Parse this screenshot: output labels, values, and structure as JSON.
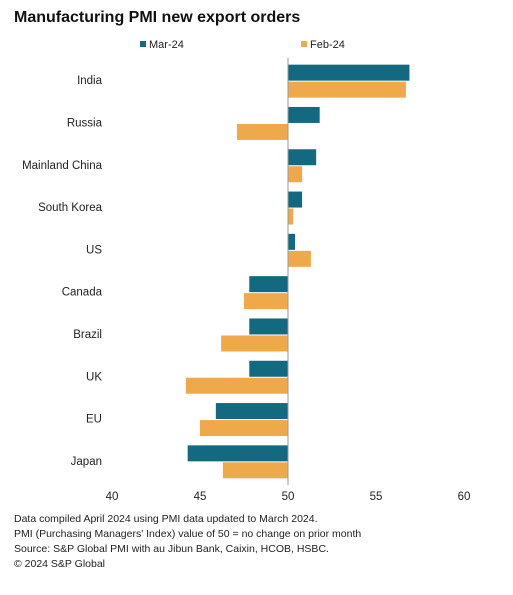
{
  "title": "Manufacturing PMI new export orders",
  "colors": {
    "mar": "#136a80",
    "feb": "#f0a94a",
    "baseline": "#999999"
  },
  "chart_data": {
    "type": "bar",
    "orientation": "horizontal",
    "title": "Manufacturing PMI new export orders",
    "categories": [
      "India",
      "Russia",
      "Mainland China",
      "South Korea",
      "US",
      "Canada",
      "Brazil",
      "UK",
      "EU",
      "Japan"
    ],
    "series": [
      {
        "name": "Mar-24",
        "values": [
          56.9,
          51.8,
          51.6,
          50.8,
          50.4,
          47.8,
          47.8,
          47.8,
          45.9,
          44.3
        ]
      },
      {
        "name": "Feb-24",
        "values": [
          56.7,
          47.1,
          50.8,
          50.3,
          51.3,
          47.5,
          46.2,
          44.2,
          45.0,
          46.3
        ]
      }
    ],
    "baseline": 50,
    "xlim": [
      40,
      60
    ],
    "xticks": [
      "40",
      "45",
      "50",
      "55",
      "60"
    ],
    "legend_position": "top",
    "grid": false
  },
  "footer": {
    "line1": "Data compiled April 2024 using PMI data updated to March 2024.",
    "line2": "PMI (Purchasing Managers' Index) value of 50 = no change on prior month",
    "line3": "Source: S&P Global PMI with au Jibun Bank, Caixin, HCOB, HSBC.",
    "line4": "© 2024 S&P Global"
  }
}
